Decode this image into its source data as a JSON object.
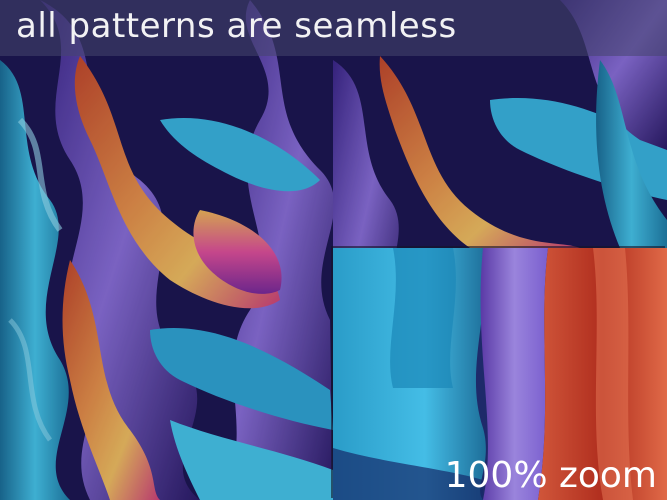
{
  "banner": {
    "text": "all patterns are seamless"
  },
  "zoom": {
    "label": "100% zoom"
  },
  "colors": {
    "deep_navy": "#141238",
    "violet": "#5b3aa8",
    "lavender": "#8a6fd8",
    "cyan": "#2fb1dc",
    "teal": "#1f7fa8",
    "orange": "#e0703e",
    "gold": "#f0b858",
    "magenta": "#d63a8c",
    "red": "#b83020"
  }
}
